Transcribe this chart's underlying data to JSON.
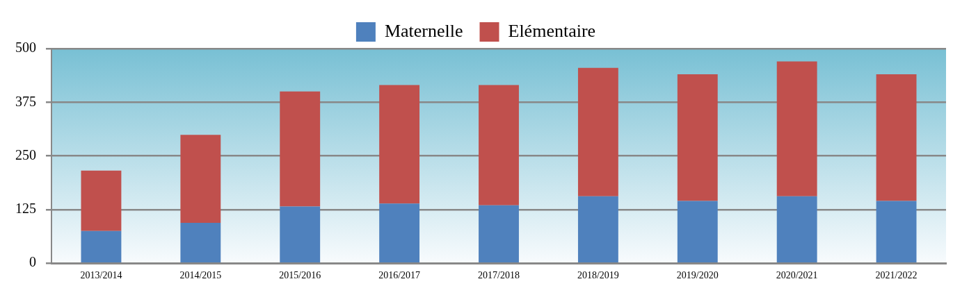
{
  "chart_data": {
    "type": "bar",
    "stacked": true,
    "categories": [
      "2013/2014",
      "2014/2015",
      "2015/2016",
      "2016/2017",
      "2017/2018",
      "2018/2019",
      "2019/2020",
      "2020/2021",
      "2021/2022"
    ],
    "series": [
      {
        "name": "Maternelle",
        "color": "#4f81bd",
        "values": [
          75,
          94,
          132,
          139,
          135,
          156,
          145,
          156,
          145
        ]
      },
      {
        "name": "Elémentaire",
        "color": "#c0504d",
        "values": [
          141,
          205,
          268,
          276,
          280,
          299,
          295,
          314,
          295
        ]
      }
    ],
    "ylim": [
      0,
      500
    ],
    "yticks": [
      0,
      125,
      250,
      375,
      500
    ],
    "grid": "y",
    "legend": "top"
  }
}
